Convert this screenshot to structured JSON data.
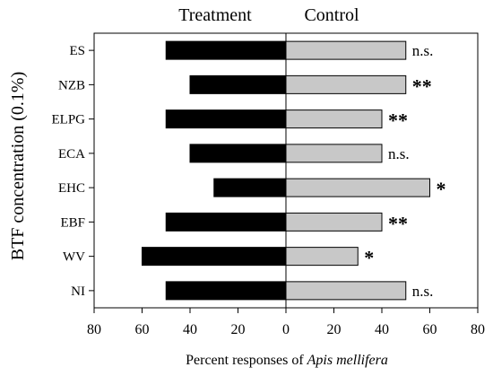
{
  "chart_data": {
    "type": "bar",
    "orientation": "horizontal",
    "diverging": true,
    "headings": {
      "left": "Treatment",
      "right": "Control"
    },
    "ylabel": "BTF concentration (0.1%)",
    "xlabel_prefix": "Percent responses of ",
    "xlabel_italic": "Apis mellifera",
    "xlim": [
      -80,
      80
    ],
    "x_ticks": [
      {
        "value": -80,
        "label": "80"
      },
      {
        "value": -60,
        "label": "60"
      },
      {
        "value": -40,
        "label": "40"
      },
      {
        "value": -20,
        "label": "20"
      },
      {
        "value": 0,
        "label": "0"
      },
      {
        "value": 20,
        "label": "20"
      },
      {
        "value": 40,
        "label": "40"
      },
      {
        "value": 60,
        "label": "60"
      },
      {
        "value": 80,
        "label": "80"
      }
    ],
    "categories": [
      "ES",
      "NZB",
      "ELPG",
      "ECA",
      "EHC",
      "EBF",
      "WV",
      "NI"
    ],
    "series": [
      {
        "name": "Treatment",
        "color": "#000000",
        "values": [
          50,
          40,
          50,
          40,
          30,
          50,
          60,
          50
        ]
      },
      {
        "name": "Control",
        "color": "#c8c8c8",
        "values": [
          50,
          50,
          40,
          40,
          60,
          40,
          30,
          50
        ]
      }
    ],
    "significance": [
      "n.s.",
      "**",
      "**",
      "n.s.",
      "*",
      "**",
      "*",
      "n.s."
    ],
    "grid": false
  }
}
